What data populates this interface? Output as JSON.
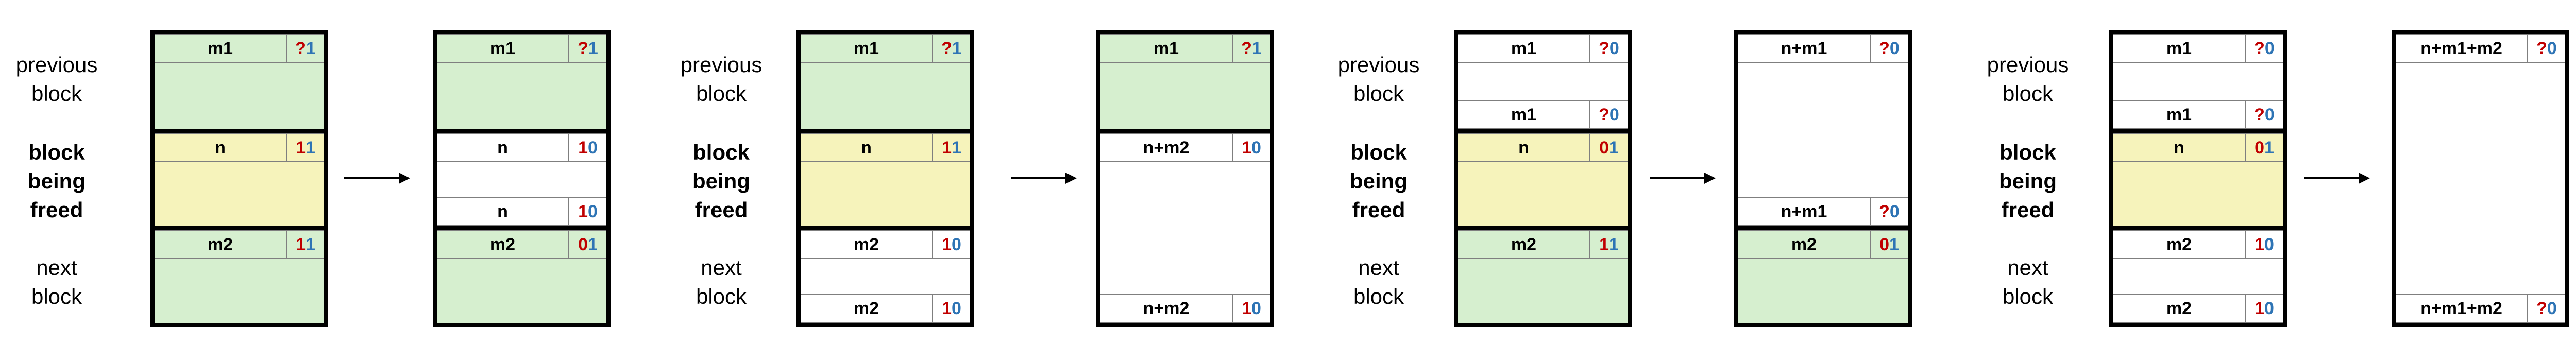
{
  "labels": {
    "previous": [
      "previous",
      "block"
    ],
    "freed": [
      "block",
      "being",
      "freed"
    ],
    "next": [
      "next",
      "block"
    ]
  },
  "panels": [
    {
      "before": {
        "blocks": [
          {
            "type": "prev",
            "color": "green",
            "header": {
              "size": "m1",
              "bits": [
                "?",
                "1"
              ]
            }
          },
          {
            "type": "cur",
            "color": "yellow",
            "header": {
              "size": "n",
              "bits": [
                "1",
                "1"
              ]
            }
          },
          {
            "type": "next",
            "color": "green",
            "header": {
              "size": "m2",
              "bits": [
                "1",
                "1"
              ]
            }
          }
        ]
      },
      "after": {
        "blocks": [
          {
            "type": "prev",
            "color": "green",
            "header": {
              "size": "m1",
              "bits": [
                "?",
                "1"
              ]
            }
          },
          {
            "type": "cur",
            "color": "white",
            "header": {
              "size": "n",
              "bits": [
                "1",
                "0"
              ]
            },
            "footer": {
              "size": "n",
              "bits": [
                "1",
                "0"
              ]
            }
          },
          {
            "type": "next",
            "color": "green",
            "header": {
              "size": "m2",
              "bits": [
                "0",
                "1"
              ]
            }
          }
        ]
      }
    },
    {
      "before": {
        "blocks": [
          {
            "type": "prev",
            "color": "green",
            "header": {
              "size": "m1",
              "bits": [
                "?",
                "1"
              ]
            }
          },
          {
            "type": "cur",
            "color": "yellow",
            "header": {
              "size": "n",
              "bits": [
                "1",
                "1"
              ]
            }
          },
          {
            "type": "next",
            "color": "white",
            "header": {
              "size": "m2",
              "bits": [
                "1",
                "0"
              ]
            },
            "footer": {
              "size": "m2",
              "bits": [
                "1",
                "0"
              ]
            }
          }
        ]
      },
      "after": {
        "blocks": [
          {
            "type": "prev",
            "color": "green",
            "header": {
              "size": "m1",
              "bits": [
                "?",
                "1"
              ]
            }
          },
          {
            "type": "curnext",
            "color": "white",
            "header": {
              "size": "n+m2",
              "bits": [
                "1",
                "0"
              ]
            },
            "footer": {
              "size": "n+m2",
              "bits": [
                "1",
                "0"
              ]
            }
          }
        ]
      }
    },
    {
      "before": {
        "blocks": [
          {
            "type": "prev",
            "color": "white",
            "header": {
              "size": "m1",
              "bits": [
                "?",
                "0"
              ]
            },
            "footer": {
              "size": "m1",
              "bits": [
                "?",
                "0"
              ]
            }
          },
          {
            "type": "cur",
            "color": "yellow",
            "header": {
              "size": "n",
              "bits": [
                "0",
                "1"
              ]
            }
          },
          {
            "type": "next",
            "color": "green",
            "header": {
              "size": "m2",
              "bits": [
                "1",
                "1"
              ]
            }
          }
        ]
      },
      "after": {
        "blocks": [
          {
            "type": "prevcur",
            "color": "white",
            "header": {
              "size": "n+m1",
              "bits": [
                "?",
                "0"
              ]
            },
            "footer": {
              "size": "n+m1",
              "bits": [
                "?",
                "0"
              ]
            }
          },
          {
            "type": "next",
            "color": "green",
            "header": {
              "size": "m2",
              "bits": [
                "0",
                "1"
              ]
            }
          }
        ]
      }
    },
    {
      "before": {
        "blocks": [
          {
            "type": "prev",
            "color": "white",
            "header": {
              "size": "m1",
              "bits": [
                "?",
                "0"
              ]
            },
            "footer": {
              "size": "m1",
              "bits": [
                "?",
                "0"
              ]
            }
          },
          {
            "type": "cur",
            "color": "yellow",
            "header": {
              "size": "n",
              "bits": [
                "0",
                "1"
              ]
            }
          },
          {
            "type": "next",
            "color": "white",
            "header": {
              "size": "m2",
              "bits": [
                "1",
                "0"
              ]
            },
            "footer": {
              "size": "m2",
              "bits": [
                "1",
                "0"
              ]
            }
          }
        ]
      },
      "after": {
        "blocks": [
          {
            "type": "all",
            "color": "white",
            "header": {
              "size": "n+m1+m2",
              "bits": [
                "?",
                "0"
              ]
            },
            "footer": {
              "size": "n+m1+m2",
              "bits": [
                "?",
                "0"
              ]
            }
          }
        ]
      }
    }
  ]
}
